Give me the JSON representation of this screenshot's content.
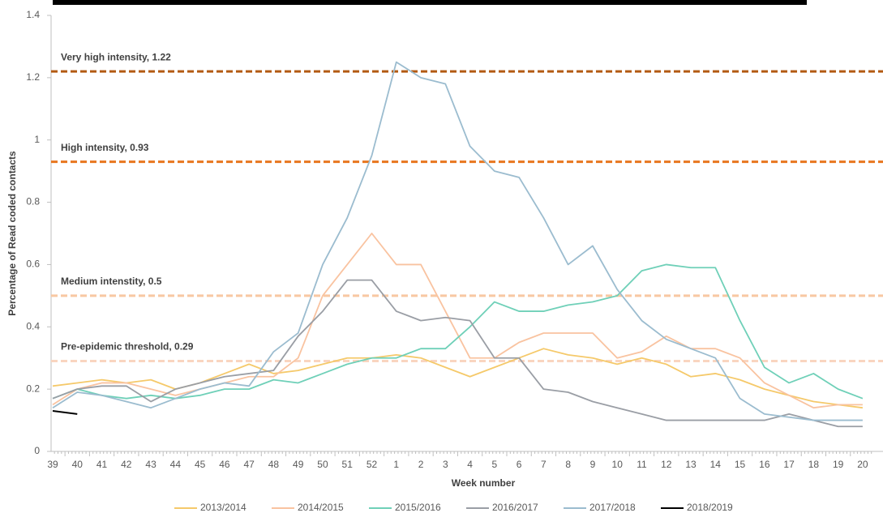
{
  "chart_data": {
    "type": "line",
    "x_label": "Week number",
    "y_label": "Percentage of Read coded contacts",
    "categories": [
      "39",
      "40",
      "41",
      "42",
      "43",
      "44",
      "45",
      "46",
      "47",
      "48",
      "49",
      "50",
      "51",
      "52",
      "1",
      "2",
      "3",
      "4",
      "5",
      "6",
      "7",
      "8",
      "9",
      "10",
      "11",
      "12",
      "13",
      "14",
      "15",
      "16",
      "17",
      "18",
      "19",
      "20"
    ],
    "ylim": [
      0,
      1.4
    ],
    "yticks": [
      0,
      0.2,
      0.4,
      0.6,
      0.8,
      1,
      1.2,
      1.4
    ],
    "thresholds": [
      {
        "label": "Very high intensity,  1.22",
        "value": 1.22,
        "color": "#b35a12"
      },
      {
        "label": "High intensity,  0.93",
        "value": 0.93,
        "color": "#e8761e"
      },
      {
        "label": "Medium intenstity,  0.5",
        "value": 0.5,
        "color": "#f8c8a2"
      },
      {
        "label": "Pre-epidemic threshold,  0.29",
        "value": 0.29,
        "color": "#f9d5c0"
      }
    ],
    "series": [
      {
        "name": "2013/2014",
        "color": "#f5c96a",
        "values": [
          0.21,
          0.22,
          0.23,
          0.22,
          0.23,
          0.2,
          0.22,
          0.25,
          0.28,
          0.25,
          0.26,
          0.28,
          0.3,
          0.3,
          0.31,
          0.3,
          0.27,
          0.24,
          0.27,
          0.3,
          0.33,
          0.31,
          0.3,
          0.28,
          0.3,
          0.28,
          0.24,
          0.25,
          0.23,
          0.2,
          0.18,
          0.16,
          0.15,
          0.14
        ]
      },
      {
        "name": "2014/2015",
        "color": "#f9c3a0",
        "values": [
          0.15,
          0.2,
          0.22,
          0.22,
          0.2,
          0.18,
          0.2,
          0.22,
          0.24,
          0.24,
          0.3,
          0.5,
          0.6,
          0.7,
          0.6,
          0.6,
          0.45,
          0.3,
          0.3,
          0.35,
          0.38,
          0.38,
          0.38,
          0.3,
          0.32,
          0.37,
          0.33,
          0.33,
          0.3,
          0.22,
          0.18,
          0.14,
          0.15,
          0.15
        ]
      },
      {
        "name": "2015/2016",
        "color": "#6fd0b8",
        "values": [
          0.17,
          0.2,
          0.18,
          0.17,
          0.18,
          0.17,
          0.18,
          0.2,
          0.2,
          0.23,
          0.22,
          0.25,
          0.28,
          0.3,
          0.3,
          0.33,
          0.33,
          0.4,
          0.48,
          0.45,
          0.45,
          0.47,
          0.48,
          0.5,
          0.58,
          0.6,
          0.59,
          0.59,
          0.42,
          0.27,
          0.22,
          0.25,
          0.2,
          0.17
        ]
      },
      {
        "name": "2016/2017",
        "color": "#9a9ea5",
        "values": [
          0.17,
          0.2,
          0.21,
          0.21,
          0.16,
          0.2,
          0.22,
          0.24,
          0.25,
          0.26,
          0.37,
          0.45,
          0.55,
          0.55,
          0.45,
          0.42,
          0.43,
          0.42,
          0.3,
          0.3,
          0.2,
          0.19,
          0.16,
          0.14,
          0.12,
          0.1,
          0.1,
          0.1,
          0.1,
          0.1,
          0.12,
          0.1,
          0.08,
          0.08
        ]
      },
      {
        "name": "2017/2018",
        "color": "#9bbccf",
        "values": [
          0.14,
          0.19,
          0.18,
          0.16,
          0.14,
          0.17,
          0.2,
          0.22,
          0.21,
          0.32,
          0.38,
          0.6,
          0.75,
          0.95,
          1.25,
          1.2,
          1.18,
          0.98,
          0.9,
          0.88,
          0.75,
          0.6,
          0.66,
          0.52,
          0.42,
          0.36,
          0.33,
          0.3,
          0.17,
          0.12,
          0.11,
          0.1,
          0.1,
          0.1
        ]
      },
      {
        "name": "2018/2019",
        "color": "#000000",
        "values": [
          0.13,
          0.12,
          null,
          null,
          null,
          null,
          null,
          null,
          null,
          null,
          null,
          null,
          null,
          null,
          null,
          null,
          null,
          null,
          null,
          null,
          null,
          null,
          null,
          null,
          null,
          null,
          null,
          null,
          null,
          null,
          null,
          null,
          null,
          null
        ]
      }
    ]
  }
}
